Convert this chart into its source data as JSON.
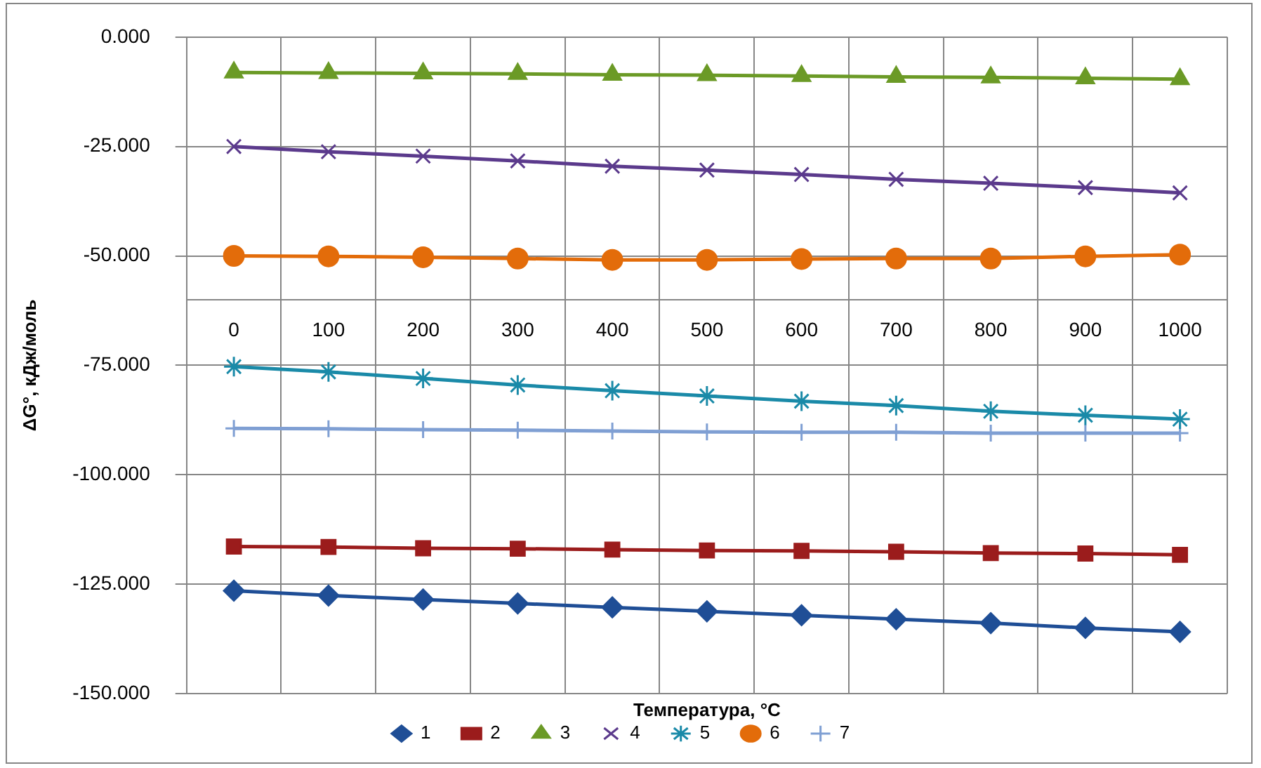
{
  "chart_data": {
    "type": "line",
    "xlabel": "Температура, °C",
    "ylabel": "ΔG°, кДж/моль",
    "categories": [
      "0",
      "100",
      "200",
      "300",
      "400",
      "500",
      "600",
      "700",
      "800",
      "900",
      "1000"
    ],
    "ylim": [
      -150,
      0
    ],
    "yticks": [
      {
        "value": 0,
        "label": "0.000"
      },
      {
        "value": -25,
        "label": "-25.000"
      },
      {
        "value": -50,
        "label": "-50.000"
      },
      {
        "value": -75,
        "label": "-75.000"
      },
      {
        "value": -100,
        "label": "-100.000"
      },
      {
        "value": -125,
        "label": "-125.000"
      },
      {
        "value": -150,
        "label": "-150.000"
      }
    ],
    "grid": true,
    "legend": "bottom",
    "line_style": "solid",
    "ref_lines": [
      {
        "axis": "y",
        "value": -60,
        "color": "#868686"
      }
    ],
    "series": [
      {
        "name": "1",
        "color": "#1f4e96",
        "marker": "diamond",
        "values": [
          -126.5,
          -127.6,
          -128.5,
          -129.4,
          -130.3,
          -131.2,
          -132.1,
          -133.0,
          -133.9,
          -135.0,
          -135.9
        ]
      },
      {
        "name": "2",
        "color": "#9b1c1c",
        "marker": "square",
        "values": [
          -116.4,
          -116.5,
          -116.8,
          -116.9,
          -117.1,
          -117.3,
          -117.4,
          -117.6,
          -117.9,
          -118.0,
          -118.3
        ]
      },
      {
        "name": "3",
        "color": "#6b9a26",
        "marker": "triangle",
        "values": [
          -8.1,
          -8.2,
          -8.3,
          -8.4,
          -8.6,
          -8.7,
          -8.9,
          -9.1,
          -9.2,
          -9.4,
          -9.6
        ]
      },
      {
        "name": "4",
        "color": "#5b3a8c",
        "marker": "x",
        "values": [
          -25.0,
          -26.2,
          -27.2,
          -28.3,
          -29.5,
          -30.4,
          -31.4,
          -32.5,
          -33.4,
          -34.4,
          -35.6
        ]
      },
      {
        "name": "5",
        "color": "#1a8aa8",
        "marker": "cross",
        "values": [
          -75.3,
          -76.5,
          -78.0,
          -79.5,
          -80.8,
          -82.0,
          -83.2,
          -84.2,
          -85.5,
          -86.4,
          -87.3
        ]
      },
      {
        "name": "6",
        "color": "#e36c0a",
        "marker": "circle",
        "values": [
          -50.0,
          -50.1,
          -50.3,
          -50.6,
          -50.9,
          -50.9,
          -50.7,
          -50.6,
          -50.6,
          -50.1,
          -49.7
        ]
      },
      {
        "name": "7",
        "color": "#7f9fd3",
        "marker": "plus",
        "values": [
          -89.4,
          -89.5,
          -89.7,
          -89.8,
          -90.0,
          -90.2,
          -90.3,
          -90.3,
          -90.5,
          -90.5,
          -90.5
        ]
      }
    ]
  }
}
